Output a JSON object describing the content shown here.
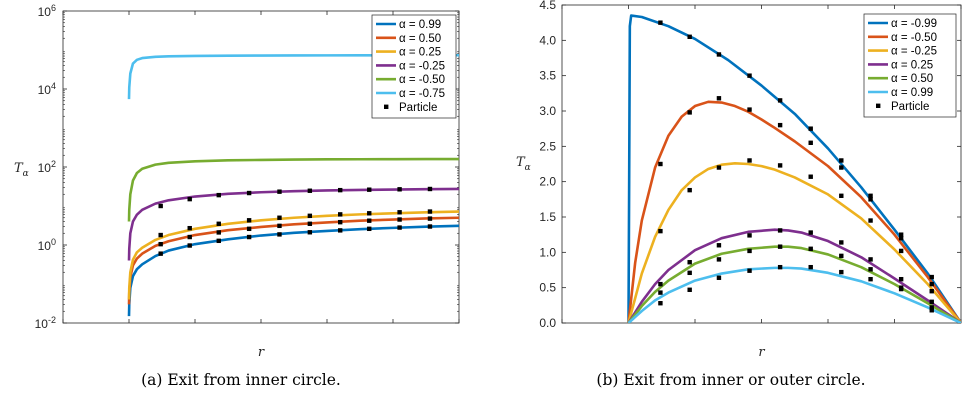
{
  "colors": {
    "blue": "#0072BD",
    "orange": "#D95319",
    "yellow": "#EDB120",
    "purple": "#7E2F8E",
    "green": "#77AC30",
    "cyan": "#4DBEEE",
    "marker": "#000000"
  },
  "chart_data": [
    {
      "type": "line",
      "caption": "(a) Exit from inner circle.",
      "xlabel": "r",
      "ylabel": "T",
      "ylabel_sub": "α",
      "xlim": [
        0,
        3
      ],
      "ylim": [
        0.01,
        1000000
      ],
      "yscale": "log",
      "grid": false,
      "legend_position": "top-right",
      "x_ticks": [
        "0",
        "0.5",
        "1",
        "1.5",
        "2",
        "2.5",
        "3"
      ],
      "y_ticks": [
        {
          "base": "10",
          "exp": "-2",
          "value": 0.01
        },
        {
          "base": "10",
          "exp": "0",
          "value": 1
        },
        {
          "base": "10",
          "exp": "2",
          "value": 100
        },
        {
          "base": "10",
          "exp": "4",
          "value": 10000
        },
        {
          "base": "10",
          "exp": "6",
          "value": 1000000
        }
      ],
      "series": [
        {
          "name": "α = 0.99",
          "color_key": "blue",
          "x": [
            0.5,
            0.502,
            0.51,
            0.53,
            0.56,
            0.6,
            0.7,
            0.8,
            1.0,
            1.25,
            1.5,
            1.75,
            2.0,
            2.25,
            2.5,
            2.75,
            3.0
          ],
          "y": [
            0.015,
            0.03,
            0.08,
            0.16,
            0.24,
            0.32,
            0.52,
            0.72,
            1.05,
            1.4,
            1.75,
            2.05,
            2.3,
            2.55,
            2.75,
            2.95,
            3.1
          ],
          "markers_x": [
            0.74,
            0.96,
            1.18,
            1.41,
            1.64,
            1.87,
            2.1,
            2.32,
            2.55,
            2.78
          ],
          "markers_y": [
            0.6,
            0.97,
            1.28,
            1.6,
            1.87,
            2.12,
            2.37,
            2.6,
            2.8,
            2.98
          ]
        },
        {
          "name": "α = 0.50",
          "color_key": "orange",
          "x": [
            0.5,
            0.502,
            0.51,
            0.53,
            0.56,
            0.6,
            0.7,
            0.8,
            1.0,
            1.25,
            1.5,
            1.75,
            2.0,
            2.25,
            2.5,
            2.75,
            3.0
          ],
          "y": [
            0.03,
            0.06,
            0.15,
            0.3,
            0.45,
            0.6,
            0.95,
            1.25,
            1.8,
            2.4,
            2.9,
            3.4,
            3.8,
            4.2,
            4.5,
            4.8,
            5.0
          ],
          "markers_x": [
            0.74,
            0.96,
            1.18,
            1.41,
            1.64,
            1.87,
            2.1,
            2.32,
            2.55,
            2.78
          ],
          "markers_y": [
            1.05,
            1.6,
            2.1,
            2.6,
            3.1,
            3.5,
            3.85,
            4.2,
            4.5,
            4.75
          ]
        },
        {
          "name": "α = 0.25",
          "color_key": "yellow",
          "x": [
            0.5,
            0.502,
            0.51,
            0.53,
            0.56,
            0.6,
            0.7,
            0.8,
            1.0,
            1.25,
            1.5,
            1.75,
            2.0,
            2.25,
            2.5,
            2.75,
            3.0
          ],
          "y": [
            0.04,
            0.08,
            0.2,
            0.42,
            0.65,
            0.85,
            1.35,
            1.8,
            2.6,
            3.5,
            4.3,
            5.0,
            5.6,
            6.1,
            6.5,
            6.9,
            7.2
          ],
          "markers_x": [
            0.74,
            0.96,
            1.18,
            1.41,
            1.64,
            1.87,
            2.1,
            2.32,
            2.55,
            2.78
          ],
          "markers_y": [
            1.8,
            2.7,
            3.5,
            4.3,
            5.0,
            5.6,
            6.1,
            6.5,
            6.9,
            7.2
          ]
        },
        {
          "name": "α = -0.25",
          "color_key": "purple",
          "x": [
            0.5,
            0.502,
            0.51,
            0.53,
            0.56,
            0.6,
            0.7,
            0.8,
            1.0,
            1.25,
            1.5,
            1.75,
            2.0,
            2.25,
            2.5,
            2.75,
            3.0
          ],
          "y": [
            0.4,
            0.8,
            2.0,
            4.0,
            6.0,
            8.0,
            11.5,
            14.0,
            17.5,
            20.5,
            22.5,
            24.0,
            25.0,
            25.8,
            26.4,
            27.0,
            27.4
          ],
          "markers_x": [
            0.74,
            0.96,
            1.18,
            1.41,
            1.64,
            1.87,
            2.1,
            2.32,
            2.55,
            2.78
          ],
          "markers_y": [
            10.0,
            15.0,
            19.0,
            21.5,
            23.3,
            24.6,
            25.5,
            26.2,
            26.8,
            27.3
          ]
        },
        {
          "name": "α = -0.50",
          "color_key": "green",
          "x": [
            0.5,
            0.502,
            0.51,
            0.53,
            0.56,
            0.6,
            0.7,
            0.8,
            1.0,
            1.25,
            1.5,
            1.75,
            2.0,
            2.25,
            2.5,
            2.75,
            3.0
          ],
          "y": [
            4.0,
            8.0,
            20.0,
            45.0,
            70.0,
            90.0,
            115.0,
            128.0,
            140.0,
            148.0,
            152.0,
            155.0,
            157.0,
            158.0,
            159.0,
            160.0,
            160.0
          ],
          "markers_x": [],
          "markers_y": []
        },
        {
          "name": "α = -0.75",
          "color_key": "cyan",
          "x": [
            0.5,
            0.502,
            0.51,
            0.53,
            0.56,
            0.6,
            0.7,
            0.8,
            1.0,
            1.25,
            1.5,
            1.75,
            2.0,
            2.25,
            2.5,
            2.75,
            3.0
          ],
          "y": [
            5500,
            11000,
            25000,
            45000,
            56000,
            62000,
            67000,
            69000,
            70500,
            71500,
            72000,
            72500,
            72800,
            73000,
            73200,
            73300,
            73400
          ],
          "markers_x": [],
          "markers_y": []
        }
      ],
      "legend": [
        {
          "label": "α = 0.99",
          "color_key": "blue",
          "kind": "line"
        },
        {
          "label": "α = 0.50",
          "color_key": "orange",
          "kind": "line"
        },
        {
          "label": "α = 0.25",
          "color_key": "yellow",
          "kind": "line"
        },
        {
          "label": "α = -0.25",
          "color_key": "purple",
          "kind": "line"
        },
        {
          "label": "α = -0.50",
          "color_key": "green",
          "kind": "line"
        },
        {
          "label": "α = -0.75",
          "color_key": "cyan",
          "kind": "line"
        },
        {
          "label": "Particle",
          "color_key": "marker",
          "kind": "marker"
        }
      ]
    },
    {
      "type": "line",
      "caption": "(b) Exit from inner or outer circle.",
      "xlabel": "r",
      "ylabel": "T",
      "ylabel_sub": "α",
      "xlim": [
        0,
        3
      ],
      "ylim": [
        0,
        4.5
      ],
      "yscale": "linear",
      "grid": false,
      "legend_position": "top-right",
      "x_ticks": [
        "0",
        "0.5",
        "1",
        "1.5",
        "2",
        "2.5",
        "3"
      ],
      "y_ticks": [
        "0.0",
        "0.5",
        "1.0",
        "1.5",
        "2.0",
        "2.5",
        "3.0",
        "3.5",
        "4.0",
        "4.5"
      ],
      "series": [
        {
          "name": "α = -0.99",
          "color_key": "blue",
          "x": [
            0.5,
            0.505,
            0.51,
            0.52,
            0.6,
            0.8,
            1.0,
            1.25,
            1.5,
            1.75,
            2.0,
            2.25,
            2.5,
            2.75,
            3.0
          ],
          "y": [
            0.0,
            2.0,
            4.2,
            4.35,
            4.33,
            4.2,
            4.02,
            3.72,
            3.36,
            2.96,
            2.47,
            1.92,
            1.32,
            0.7,
            0.0
          ],
          "markers_x": [
            0.74,
            0.96,
            1.18,
            1.41,
            1.64,
            1.87,
            2.1,
            2.32,
            2.55,
            2.78
          ],
          "markers_y": [
            4.25,
            4.05,
            3.8,
            3.5,
            3.15,
            2.75,
            2.3,
            1.8,
            1.25,
            0.65
          ]
        },
        {
          "name": "α = -0.50",
          "color_key": "orange",
          "x": [
            0.5,
            0.55,
            0.6,
            0.7,
            0.8,
            0.9,
            1.0,
            1.1,
            1.2,
            1.3,
            1.4,
            1.5,
            1.6,
            1.75,
            2.0,
            2.25,
            2.5,
            2.75,
            3.0
          ],
          "y": [
            0.0,
            0.85,
            1.45,
            2.2,
            2.65,
            2.92,
            3.07,
            3.13,
            3.12,
            3.07,
            2.99,
            2.88,
            2.76,
            2.57,
            2.22,
            1.78,
            1.25,
            0.65,
            0.0
          ],
          "markers_x": [
            0.74,
            0.96,
            1.18,
            1.41,
            1.64,
            1.87,
            2.1,
            2.32,
            2.55,
            2.78
          ],
          "markers_y": [
            2.25,
            2.98,
            3.18,
            3.02,
            2.8,
            2.55,
            2.2,
            1.75,
            1.2,
            0.55
          ]
        },
        {
          "name": "α = -0.25",
          "color_key": "yellow",
          "x": [
            0.5,
            0.6,
            0.7,
            0.8,
            0.9,
            1.0,
            1.1,
            1.2,
            1.3,
            1.4,
            1.5,
            1.6,
            1.75,
            2.0,
            2.25,
            2.5,
            2.75,
            3.0
          ],
          "y": [
            0.0,
            0.7,
            1.22,
            1.6,
            1.88,
            2.06,
            2.18,
            2.24,
            2.26,
            2.25,
            2.22,
            2.17,
            2.06,
            1.82,
            1.48,
            1.04,
            0.55,
            0.0
          ],
          "markers_x": [
            0.74,
            0.96,
            1.18,
            1.41,
            1.64,
            1.87,
            2.1,
            2.32,
            2.55,
            2.78
          ],
          "markers_y": [
            1.3,
            1.88,
            2.2,
            2.3,
            2.23,
            2.07,
            1.8,
            1.45,
            1.02,
            0.45
          ]
        },
        {
          "name": "α = 0.25",
          "color_key": "purple",
          "x": [
            0.5,
            0.6,
            0.7,
            0.8,
            1.0,
            1.2,
            1.4,
            1.6,
            1.7,
            1.8,
            2.0,
            2.25,
            2.5,
            2.75,
            3.0
          ],
          "y": [
            0.0,
            0.3,
            0.55,
            0.75,
            1.03,
            1.2,
            1.29,
            1.32,
            1.31,
            1.28,
            1.16,
            0.93,
            0.63,
            0.32,
            0.0
          ],
          "markers_x": [
            0.74,
            0.96,
            1.18,
            1.41,
            1.64,
            1.87,
            2.1,
            2.32,
            2.55,
            2.78
          ],
          "markers_y": [
            0.55,
            0.86,
            1.1,
            1.24,
            1.31,
            1.28,
            1.14,
            0.9,
            0.62,
            0.3
          ]
        },
        {
          "name": "α = 0.50",
          "color_key": "green",
          "x": [
            0.5,
            0.6,
            0.7,
            0.8,
            1.0,
            1.2,
            1.4,
            1.6,
            1.7,
            1.8,
            2.0,
            2.25,
            2.5,
            2.75,
            3.0
          ],
          "y": [
            0.0,
            0.24,
            0.44,
            0.6,
            0.84,
            0.98,
            1.05,
            1.08,
            1.08,
            1.06,
            0.97,
            0.79,
            0.55,
            0.28,
            0.0
          ],
          "markers_x": [
            0.74,
            0.96,
            1.18,
            1.41,
            1.64,
            1.87,
            2.1,
            2.32,
            2.55,
            2.78
          ],
          "markers_y": [
            0.43,
            0.71,
            0.9,
            1.02,
            1.08,
            1.05,
            0.95,
            0.76,
            0.5,
            0.22
          ]
        },
        {
          "name": "α = 0.99",
          "color_key": "cyan",
          "x": [
            0.5,
            0.6,
            0.7,
            0.8,
            1.0,
            1.2,
            1.4,
            1.6,
            1.7,
            1.8,
            2.0,
            2.25,
            2.5,
            2.75,
            3.0
          ],
          "y": [
            0.0,
            0.17,
            0.32,
            0.43,
            0.6,
            0.7,
            0.76,
            0.78,
            0.78,
            0.77,
            0.71,
            0.59,
            0.42,
            0.22,
            0.0
          ],
          "markers_x": [
            0.74,
            0.96,
            1.18,
            1.41,
            1.64,
            1.87,
            2.1,
            2.32,
            2.55,
            2.78
          ],
          "markers_y": [
            0.28,
            0.47,
            0.64,
            0.74,
            0.79,
            0.79,
            0.72,
            0.62,
            0.48,
            0.18
          ]
        }
      ],
      "legend": [
        {
          "label": "α = -0.99",
          "color_key": "blue",
          "kind": "line"
        },
        {
          "label": "α = -0.50",
          "color_key": "orange",
          "kind": "line"
        },
        {
          "label": "α = -0.25",
          "color_key": "yellow",
          "kind": "line"
        },
        {
          "label": "α = 0.25",
          "color_key": "purple",
          "kind": "line"
        },
        {
          "label": "α = 0.50",
          "color_key": "green",
          "kind": "line"
        },
        {
          "label": "α = 0.99",
          "color_key": "cyan",
          "kind": "line"
        },
        {
          "label": "Particle",
          "color_key": "marker",
          "kind": "marker"
        }
      ]
    }
  ]
}
